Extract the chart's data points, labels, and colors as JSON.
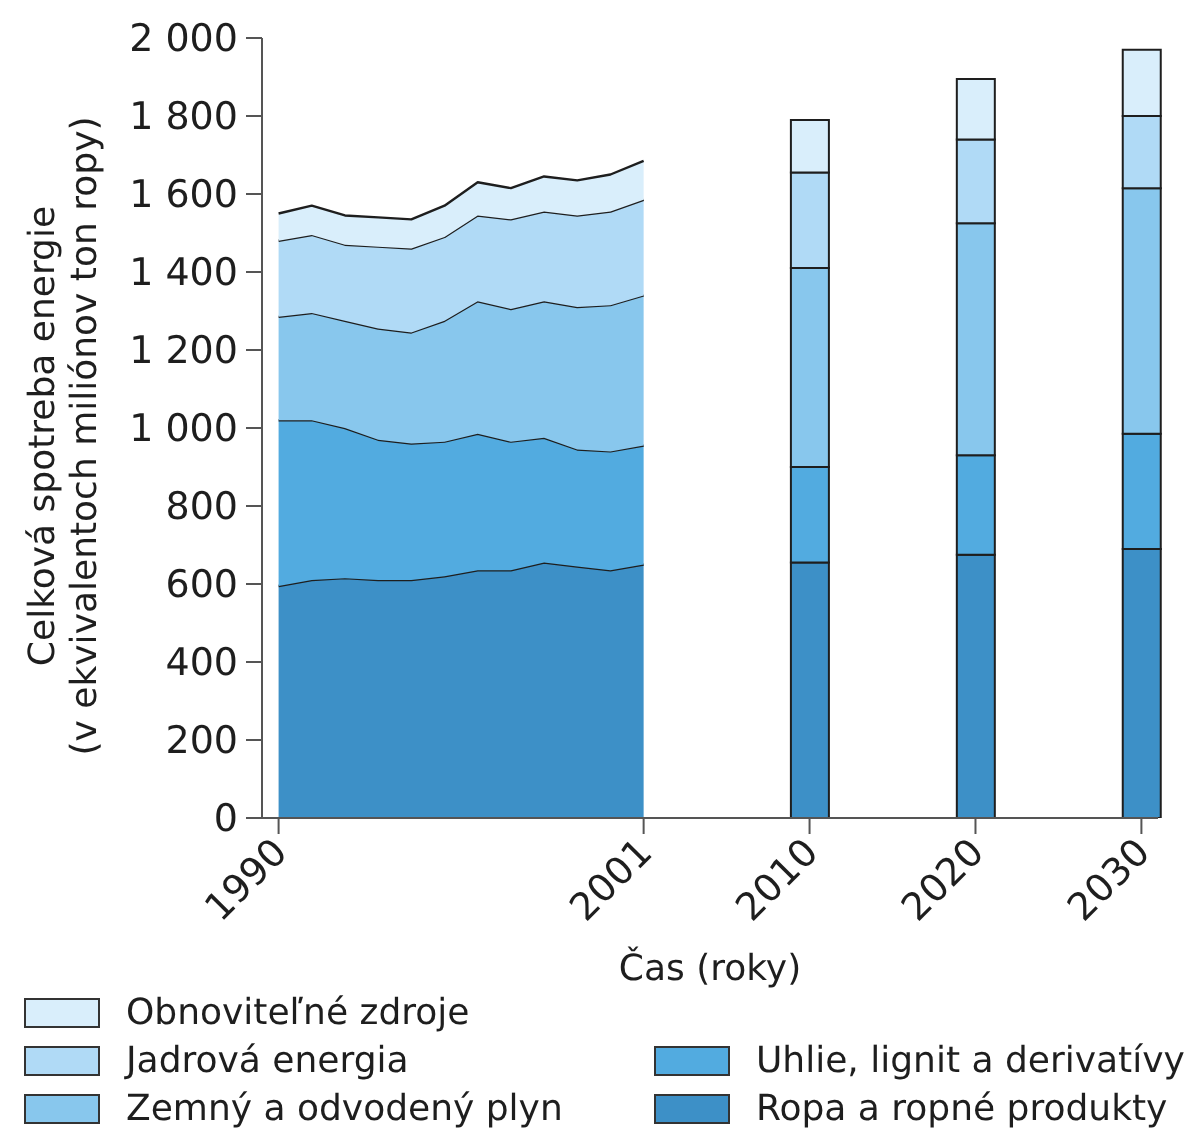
{
  "chart_data": {
    "type": "area",
    "stacked": true,
    "xlabel": "Čas (roky)",
    "ylabel": "Celková spotreba energie\n(v ekvivalentoch miliónov ton ropy)",
    "categories": [
      "1990",
      null,
      null,
      null,
      null,
      null,
      null,
      null,
      null,
      null,
      null,
      "2001",
      null,
      null,
      null,
      null,
      "2010",
      null,
      null,
      null,
      null,
      "2020",
      null,
      null,
      null,
      null,
      "2030"
    ],
    "series": [
      {
        "name": "Ropa a ropné produkty",
        "color": "#3d90c7",
        "values": [
          595,
          610,
          615,
          610,
          610,
          620,
          635,
          635,
          655,
          645,
          635,
          650,
          null,
          null,
          null,
          null,
          null,
          null,
          null,
          null,
          null,
          null,
          null,
          null,
          null,
          null,
          null
        ]
      },
      {
        "name": "Uhlie, lignit a derivatívy",
        "color": "#52abe0",
        "values": [
          425,
          410,
          385,
          360,
          350,
          345,
          350,
          330,
          320,
          300,
          305,
          305,
          null,
          null,
          null,
          null,
          null,
          null,
          null,
          null,
          null,
          null,
          null,
          null,
          null,
          null,
          null
        ]
      },
      {
        "name": "Zemný a odvodený plyn",
        "color": "#88c7ed",
        "values": [
          265,
          275,
          275,
          285,
          285,
          310,
          340,
          340,
          350,
          365,
          375,
          385,
          null,
          null,
          null,
          null,
          null,
          null,
          null,
          null,
          null,
          null,
          null,
          null,
          null,
          null,
          null
        ]
      },
      {
        "name": "Jadrová energia",
        "color": "#b0daf6",
        "values": [
          195,
          200,
          195,
          210,
          215,
          215,
          220,
          230,
          230,
          235,
          240,
          245,
          null,
          null,
          null,
          null,
          null,
          null,
          null,
          null,
          null,
          null,
          null,
          null,
          null,
          null,
          null
        ]
      },
      {
        "name": "Obnoviteľné zdroje",
        "color": "#d9eefb",
        "values": [
          70,
          75,
          75,
          75,
          75,
          80,
          85,
          80,
          90,
          90,
          95,
          100,
          null,
          null,
          null,
          null,
          null,
          null,
          null,
          null,
          null,
          null,
          null,
          null,
          null,
          null,
          null
        ]
      },
      {
        "type": "bar",
        "color": "#3d90c7",
        "values": [
          null,
          null,
          null,
          null,
          null,
          null,
          null,
          null,
          null,
          null,
          null,
          null,
          null,
          null,
          null,
          null,
          655,
          null,
          null,
          null,
          null,
          675,
          null,
          null,
          null,
          null,
          690
        ]
      },
      {
        "type": "bar",
        "color": "#52abe0",
        "values": [
          null,
          null,
          null,
          null,
          null,
          null,
          null,
          null,
          null,
          null,
          null,
          null,
          null,
          null,
          null,
          null,
          245,
          null,
          null,
          null,
          null,
          255,
          null,
          null,
          null,
          null,
          295
        ]
      },
      {
        "type": "bar",
        "color": "#88c7ed",
        "values": [
          null,
          null,
          null,
          null,
          null,
          null,
          null,
          null,
          null,
          null,
          null,
          null,
          null,
          null,
          null,
          null,
          510,
          null,
          null,
          null,
          null,
          595,
          null,
          null,
          null,
          null,
          630
        ]
      },
      {
        "type": "bar",
        "color": "#b0daf6",
        "values": [
          null,
          null,
          null,
          null,
          null,
          null,
          null,
          null,
          null,
          null,
          null,
          null,
          null,
          null,
          null,
          null,
          245,
          null,
          null,
          null,
          null,
          215,
          null,
          null,
          null,
          null,
          185
        ]
      },
      {
        "type": "bar",
        "color": "#d9eefb",
        "values": [
          null,
          null,
          null,
          null,
          null,
          null,
          null,
          null,
          null,
          null,
          null,
          null,
          null,
          null,
          null,
          null,
          135,
          null,
          null,
          null,
          null,
          155,
          null,
          null,
          null,
          null,
          170
        ]
      }
    ],
    "ylim": [
      0,
      2000
    ],
    "yticks": [
      0,
      200,
      400,
      600,
      800,
      {
        "value": 1000,
        "label": "1 000"
      },
      {
        "value": 1200,
        "label": "1 200"
      },
      {
        "value": 1400,
        "label": "1 400"
      },
      {
        "value": 1600,
        "label": "1 600"
      },
      {
        "value": 1800,
        "label": "1 800"
      },
      {
        "value": 2000,
        "label": "2 000"
      }
    ],
    "legend": "bottom"
  }
}
